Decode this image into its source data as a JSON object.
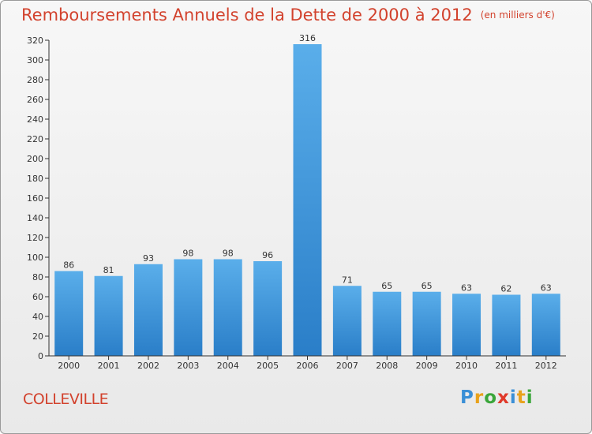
{
  "title": "Remboursements Annuels de la Dette de 2000 à 2012",
  "unit": "(en milliers d'€)",
  "commune": "COLLEVILLE",
  "logo": {
    "text": "Proxiti",
    "letter_colors": [
      "#3a8fd6",
      "#e8a21c",
      "#3aa63a",
      "#e03a2a",
      "#3a8fd6",
      "#e8a21c",
      "#3aa63a"
    ]
  },
  "colors": {
    "title": "#d2422d",
    "bar_light": "#5aaeea",
    "bar_dark": "#2a7ec8",
    "axis": "#333333",
    "grid_tick": "#333333"
  },
  "chart_data": {
    "type": "bar",
    "categories": [
      "2000",
      "2001",
      "2002",
      "2003",
      "2004",
      "2005",
      "2006",
      "2007",
      "2008",
      "2009",
      "2010",
      "2011",
      "2012"
    ],
    "values": [
      86,
      81,
      93,
      98,
      98,
      96,
      316,
      71,
      65,
      65,
      63,
      62,
      63
    ],
    "ylim": [
      0,
      320
    ],
    "yticks": [
      0,
      20,
      40,
      60,
      80,
      100,
      120,
      140,
      160,
      180,
      200,
      220,
      240,
      260,
      280,
      300,
      320
    ],
    "xlabel": "",
    "ylabel": "",
    "grid": false,
    "legend": "none"
  }
}
